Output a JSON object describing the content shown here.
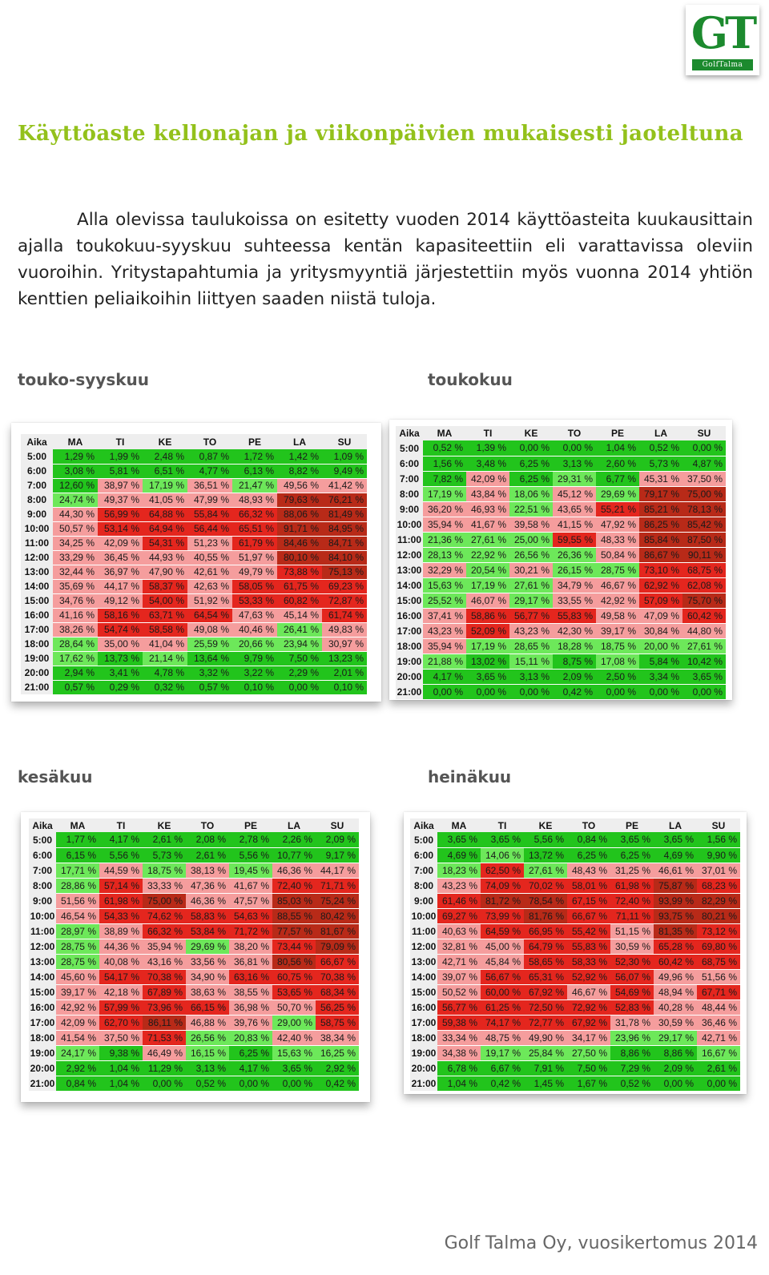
{
  "logo": {
    "monogram": "GT",
    "wordmark": "GolfTalma"
  },
  "heading": "Käyttöaste kellonajan ja viikonpäivien mukaisesti jaoteltuna",
  "intro": "Alla olevissa taulukoissa on esitetty vuoden 2014 käyttöasteita kuukausittain ajalla toukokuu-syyskuu suhteessa kentän kapasiteettiin eli varattavissa oleviin vuoroihin. Yritystapahtumia ja yritysmyyntiä järjestettiin myös vuonna 2014 yhtiön kenttien peliaikoihin liittyen saaden niistä tuloja.",
  "footer": "Golf Talma Oy, vuosikertomus 2014",
  "colors": {
    "green": "#22c41c",
    "lightgreen": "#6de85a",
    "pink": "#f59d9d",
    "red": "#e4261e",
    "darkred": "#b82a18"
  },
  "tables": [
    {
      "title": "touko-syyskuu",
      "header": [
        "Aika",
        "MA",
        "TI",
        "KE",
        "TO",
        "PE",
        "LA",
        "SU"
      ],
      "hours": [
        "5:00",
        "6:00",
        "7:00",
        "8:00",
        "9:00",
        "10:00",
        "11:00",
        "12:00",
        "13:00",
        "14:00",
        "15:00",
        "16:00",
        "17:00",
        "18:00",
        "19:00",
        "20:00",
        "21:00"
      ],
      "rows": [
        [
          "1,29 %",
          "1,99 %",
          "2,48 %",
          "0,87 %",
          "1,72 %",
          "1,42 %",
          "1,09 %"
        ],
        [
          "3,08 %",
          "5,81 %",
          "6,51 %",
          "4,77 %",
          "6,13 %",
          "8,82 %",
          "9,49 %"
        ],
        [
          "12,60 %",
          "38,97 %",
          "17,19 %",
          "36,51 %",
          "21,47 %",
          "49,56 %",
          "41,42 %"
        ],
        [
          "24,74 %",
          "49,37 %",
          "41,05 %",
          "47,99 %",
          "48,93 %",
          "79,63 %",
          "76,21 %"
        ],
        [
          "44,30 %",
          "56,99 %",
          "64,88 %",
          "55,84 %",
          "66,32 %",
          "88,06 %",
          "81,49 %"
        ],
        [
          "50,57 %",
          "53,14 %",
          "64,94 %",
          "56,44 %",
          "65,51 %",
          "91,71 %",
          "84,95 %"
        ],
        [
          "34,25 %",
          "42,09 %",
          "54,31 %",
          "51,23 %",
          "61,79 %",
          "84,46 %",
          "84,71 %"
        ],
        [
          "33,29 %",
          "36,45 %",
          "44,93 %",
          "40,55 %",
          "51,97 %",
          "80,10 %",
          "84,10 %"
        ],
        [
          "32,44 %",
          "36,97 %",
          "47,90 %",
          "42,61 %",
          "49,79 %",
          "73,88 %",
          "75,13 %"
        ],
        [
          "35,69 %",
          "44,17 %",
          "58,37 %",
          "42,63 %",
          "58,05 %",
          "61,75 %",
          "69,23 %"
        ],
        [
          "34,76 %",
          "49,12 %",
          "54,00 %",
          "51,92 %",
          "53,33 %",
          "60,82 %",
          "72,87 %"
        ],
        [
          "41,16 %",
          "58,16 %",
          "63,71 %",
          "64,54 %",
          "47,63 %",
          "45,14 %",
          "61,74 %"
        ],
        [
          "38,26 %",
          "54,74 %",
          "58,58 %",
          "49,08 %",
          "40,46 %",
          "26,41 %",
          "49,83 %"
        ],
        [
          "28,64 %",
          "35,00 %",
          "41,04 %",
          "25,59 %",
          "20,66 %",
          "23,94 %",
          "30,97 %"
        ],
        [
          "17,62 %",
          "13,73 %",
          "21,14 %",
          "13,64 %",
          "9,79 %",
          "7,50 %",
          "13,23 %"
        ],
        [
          "2,94 %",
          "3,41 %",
          "4,78 %",
          "3,32 %",
          "3,22 %",
          "2,29 %",
          "2,01 %"
        ],
        [
          "0,57 %",
          "0,29 %",
          "0,32 %",
          "0,57 %",
          "0,10 %",
          "0,00 %",
          "0,10 %"
        ]
      ]
    },
    {
      "title": "toukokuu",
      "header": [
        "Aika",
        "MA",
        "TI",
        "KE",
        "TO",
        "PE",
        "LA",
        "SU"
      ],
      "hours": [
        "5:00",
        "6:00",
        "7:00",
        "8:00",
        "9:00",
        "10:00",
        "11:00",
        "12:00",
        "13:00",
        "14:00",
        "15:00",
        "16:00",
        "17:00",
        "18:00",
        "19:00",
        "20:00",
        "21:00"
      ],
      "rows": [
        [
          "0,52 %",
          "1,39 %",
          "0,00 %",
          "0,00 %",
          "1,04 %",
          "0,52 %",
          "0,00 %"
        ],
        [
          "1,56 %",
          "3,48 %",
          "6,25 %",
          "3,13 %",
          "2,60 %",
          "5,73 %",
          "4,87 %"
        ],
        [
          "7,82 %",
          "42,09 %",
          "6,25 %",
          "29,31 %",
          "6,77 %",
          "45,31 %",
          "37,50 %"
        ],
        [
          "17,19 %",
          "43,84 %",
          "18,06 %",
          "45,12 %",
          "29,69 %",
          "79,17 %",
          "75,00 %"
        ],
        [
          "36,20 %",
          "46,93 %",
          "22,51 %",
          "43,65 %",
          "55,21 %",
          "85,21 %",
          "78,13 %"
        ],
        [
          "35,94 %",
          "41,67 %",
          "39,58 %",
          "41,15 %",
          "47,92 %",
          "86,25 %",
          "85,42 %"
        ],
        [
          "21,36 %",
          "27,61 %",
          "25,00 %",
          "59,55 %",
          "48,33 %",
          "85,84 %",
          "87,50 %"
        ],
        [
          "28,13 %",
          "22,92 %",
          "26,56 %",
          "26,36 %",
          "50,84 %",
          "86,67 %",
          "90,11 %"
        ],
        [
          "32,29 %",
          "20,54 %",
          "30,21 %",
          "26,15 %",
          "28,75 %",
          "73,10 %",
          "68,75 %"
        ],
        [
          "15,63 %",
          "17,19 %",
          "27,61 %",
          "34,79 %",
          "46,67 %",
          "62,92 %",
          "62,08 %"
        ],
        [
          "25,52 %",
          "46,07 %",
          "29,17 %",
          "33,55 %",
          "42,92 %",
          "57,09 %",
          "75,70 %"
        ],
        [
          "37,41 %",
          "58,86 %",
          "56,77 %",
          "55,83 %",
          "49,58 %",
          "47,09 %",
          "60,42 %"
        ],
        [
          "43,23 %",
          "52,09 %",
          "43,23 %",
          "42,30 %",
          "39,17 %",
          "30,84 %",
          "44,80 %"
        ],
        [
          "35,94 %",
          "17,19 %",
          "28,65 %",
          "18,28 %",
          "18,75 %",
          "20,00 %",
          "27,61 %"
        ],
        [
          "21,88 %",
          "13,02 %",
          "15,11 %",
          "8,75 %",
          "17,08 %",
          "5,84 %",
          "10,42 %"
        ],
        [
          "4,17 %",
          "3,65 %",
          "3,13 %",
          "2,09 %",
          "2,50 %",
          "3,34 %",
          "3,65 %"
        ],
        [
          "0,00 %",
          "0,00 %",
          "0,00 %",
          "0,42 %",
          "0,00 %",
          "0,00 %",
          "0,00 %"
        ]
      ]
    },
    {
      "title": "kesäkuu",
      "header": [
        "Aika",
        "MA",
        "TI",
        "KE",
        "TO",
        "PE",
        "LA",
        "SU"
      ],
      "hours": [
        "5:00",
        "6:00",
        "7:00",
        "8:00",
        "9:00",
        "10:00",
        "11:00",
        "12:00",
        "13:00",
        "14:00",
        "15:00",
        "16:00",
        "17:00",
        "18:00",
        "19:00",
        "20:00",
        "21:00"
      ],
      "rows": [
        [
          "1,77 %",
          "4,17 %",
          "2,61 %",
          "2,08 %",
          "2,78 %",
          "2,26 %",
          "2,09 %"
        ],
        [
          "6,15 %",
          "5,56 %",
          "5,73 %",
          "2,61 %",
          "5,56 %",
          "10,77 %",
          "9,17 %"
        ],
        [
          "17,71 %",
          "44,59 %",
          "18,75 %",
          "38,13 %",
          "19,45 %",
          "46,36 %",
          "44,17 %"
        ],
        [
          "28,86 %",
          "57,14 %",
          "33,33 %",
          "47,36 %",
          "41,67 %",
          "72,40 %",
          "71,71 %"
        ],
        [
          "51,56 %",
          "61,98 %",
          "75,00 %",
          "46,36 %",
          "47,57 %",
          "85,03 %",
          "75,24 %"
        ],
        [
          "46,54 %",
          "54,33 %",
          "74,62 %",
          "58,83 %",
          "54,63 %",
          "88,55 %",
          "80,42 %"
        ],
        [
          "28,97 %",
          "38,89 %",
          "66,32 %",
          "53,84 %",
          "71,72 %",
          "77,57 %",
          "81,67 %"
        ],
        [
          "28,75 %",
          "44,36 %",
          "35,94 %",
          "29,69 %",
          "38,20 %",
          "73,44 %",
          "79,09 %"
        ],
        [
          "28,75 %",
          "40,08 %",
          "43,16 %",
          "33,56 %",
          "36,81 %",
          "80,56 %",
          "66,67 %"
        ],
        [
          "45,60 %",
          "54,17 %",
          "70,38 %",
          "34,90 %",
          "63,16 %",
          "60,75 %",
          "70,38 %"
        ],
        [
          "39,17 %",
          "42,18 %",
          "67,89 %",
          "38,63 %",
          "38,55 %",
          "53,65 %",
          "68,34 %"
        ],
        [
          "42,92 %",
          "57,99 %",
          "73,96 %",
          "66,15 %",
          "36,98 %",
          "50,70 %",
          "56,25 %"
        ],
        [
          "42,09 %",
          "62,70 %",
          "86,11 %",
          "46,88 %",
          "39,76 %",
          "29,00 %",
          "58,75 %"
        ],
        [
          "41,54 %",
          "37,50 %",
          "71,53 %",
          "26,56 %",
          "20,83 %",
          "42,40 %",
          "38,34 %"
        ],
        [
          "24,17 %",
          "9,38 %",
          "46,49 %",
          "16,15 %",
          "6,25 %",
          "15,63 %",
          "16,25 %"
        ],
        [
          "2,92 %",
          "1,04 %",
          "11,29 %",
          "3,13 %",
          "4,17 %",
          "3,65 %",
          "2,92 %"
        ],
        [
          "0,84 %",
          "1,04 %",
          "0,00 %",
          "0,52 %",
          "0,00 %",
          "0,00 %",
          "0,42 %"
        ]
      ]
    },
    {
      "title": "heinäkuu",
      "header": [
        "Aika",
        "MA",
        "TI",
        "KE",
        "TO",
        "PE",
        "LA",
        "SU"
      ],
      "hours": [
        "5:00",
        "6:00",
        "7:00",
        "8:00",
        "9:00",
        "10:00",
        "11:00",
        "12:00",
        "13:00",
        "14:00",
        "15:00",
        "16:00",
        "17:00",
        "18:00",
        "19:00",
        "20:00",
        "21:00"
      ],
      "rows": [
        [
          "3,65 %",
          "3,65 %",
          "5,56 %",
          "0,84 %",
          "3,65 %",
          "3,65 %",
          "1,56 %"
        ],
        [
          "4,69 %",
          "14,06 %",
          "13,72 %",
          "6,25 %",
          "6,25 %",
          "4,69 %",
          "9,90 %"
        ],
        [
          "18,23 %",
          "62,50 %",
          "27,61 %",
          "48,43 %",
          "31,25 %",
          "46,61 %",
          "37,01 %"
        ],
        [
          "43,23 %",
          "74,09 %",
          "70,02 %",
          "58,01 %",
          "61,98 %",
          "75,87 %",
          "68,23 %"
        ],
        [
          "61,46 %",
          "81,72 %",
          "78,54 %",
          "67,15 %",
          "72,40 %",
          "93,99 %",
          "82,29 %"
        ],
        [
          "69,27 %",
          "73,99 %",
          "81,76 %",
          "66,67 %",
          "71,11 %",
          "93,75 %",
          "80,21 %"
        ],
        [
          "40,63 %",
          "64,59 %",
          "66,95 %",
          "55,42 %",
          "51,15 %",
          "81,35 %",
          "73,12 %"
        ],
        [
          "32,81 %",
          "45,00 %",
          "64,79 %",
          "55,83 %",
          "30,59 %",
          "65,28 %",
          "69,80 %"
        ],
        [
          "42,71 %",
          "45,84 %",
          "58,65 %",
          "58,33 %",
          "52,30 %",
          "60,42 %",
          "68,75 %"
        ],
        [
          "39,07 %",
          "56,67 %",
          "65,31 %",
          "52,92 %",
          "56,07 %",
          "49,96 %",
          "51,56 %"
        ],
        [
          "50,52 %",
          "60,00 %",
          "67,92 %",
          "46,67 %",
          "54,69 %",
          "48,94 %",
          "67,71 %"
        ],
        [
          "56,77 %",
          "61,25 %",
          "72,50 %",
          "72,92 %",
          "52,83 %",
          "40,28 %",
          "48,44 %"
        ],
        [
          "59,38 %",
          "74,17 %",
          "72,77 %",
          "67,92 %",
          "31,78 %",
          "30,59 %",
          "36,46 %"
        ],
        [
          "33,34 %",
          "48,75 %",
          "49,90 %",
          "34,17 %",
          "23,96 %",
          "29,17 %",
          "42,71 %"
        ],
        [
          "34,38 %",
          "19,17 %",
          "25,84 %",
          "27,50 %",
          "8,86 %",
          "8,86 %",
          "16,67 %"
        ],
        [
          "6,78 %",
          "6,67 %",
          "7,91 %",
          "7,50 %",
          "7,29 %",
          "2,09 %",
          "2,61 %"
        ],
        [
          "1,04 %",
          "0,42 %",
          "1,45 %",
          "1,67 %",
          "0,52 %",
          "0,00 %",
          "0,00 %"
        ]
      ]
    }
  ]
}
